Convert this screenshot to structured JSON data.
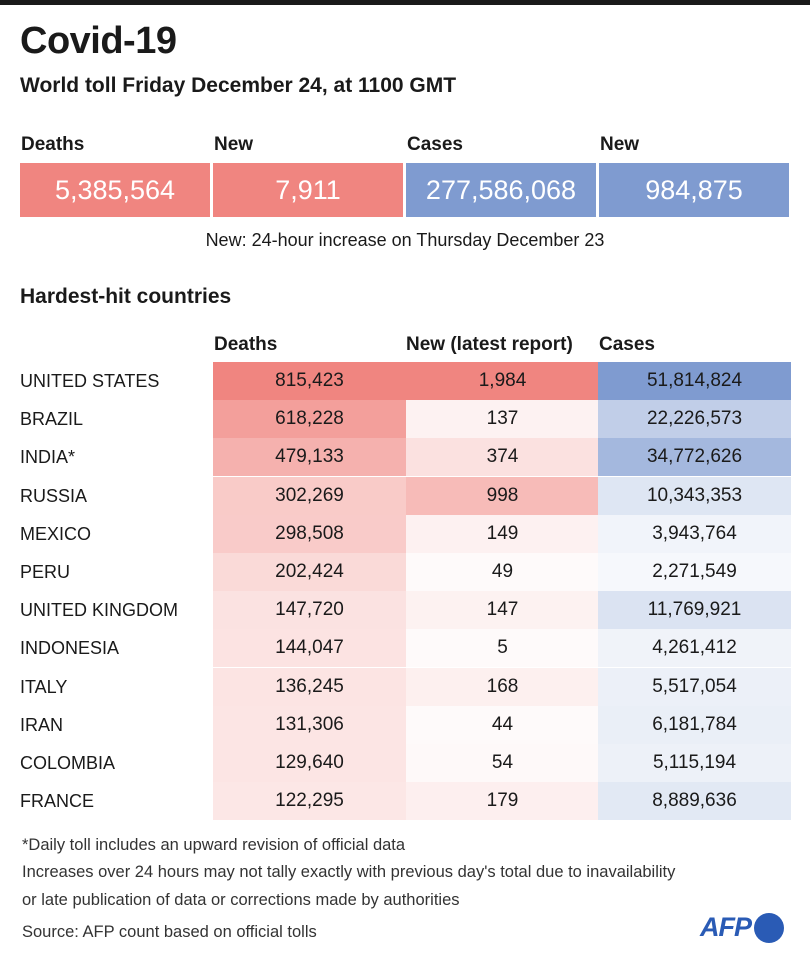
{
  "title": "Covid-19",
  "subtitle": "World toll Friday December 24, at 1100 GMT",
  "summary": [
    {
      "label": "Deaths",
      "value": "5,385,564",
      "color": "#f08580"
    },
    {
      "label": "New",
      "value": "7,911",
      "color": "#f08580"
    },
    {
      "label": "Cases",
      "value": "277,586,068",
      "color": "#7f9bd0"
    },
    {
      "label": "New",
      "value": "984,875",
      "color": "#7f9bd0"
    }
  ],
  "summary_note": "New: 24-hour increase on Thursday December 23",
  "section_title": "Hardest-hit countries",
  "columns": [
    "Deaths",
    "New (latest report)",
    "Cases"
  ],
  "colors": {
    "red": "#f08580",
    "blue": "#7f9bd0"
  },
  "chart_data": {
    "type": "table",
    "title": "Hardest-hit countries",
    "columns": [
      "Deaths",
      "New (latest report)",
      "Cases"
    ],
    "rows": [
      {
        "country": "UNITED STATES",
        "deaths": "815,423",
        "new": "1,984",
        "cases": "51,814,824"
      },
      {
        "country": "BRAZIL",
        "deaths": "618,228",
        "new": "137",
        "cases": "22,226,573"
      },
      {
        "country": "INDIA*",
        "deaths": "479,133",
        "new": "374",
        "cases": "34,772,626"
      },
      {
        "country": "RUSSIA",
        "deaths": "302,269",
        "new": "998",
        "cases": "10,343,353"
      },
      {
        "country": "MEXICO",
        "deaths": "298,508",
        "new": "149",
        "cases": "3,943,764"
      },
      {
        "country": "PERU",
        "deaths": "202,424",
        "new": "49",
        "cases": "2,271,549"
      },
      {
        "country": "UNITED KINGDOM",
        "deaths": "147,720",
        "new": "147",
        "cases": "11,769,921"
      },
      {
        "country": "INDONESIA",
        "deaths": "144,047",
        "new": "5",
        "cases": "4,261,412"
      },
      {
        "country": "ITALY",
        "deaths": "136,245",
        "new": "168",
        "cases": "5,517,054"
      },
      {
        "country": "IRAN",
        "deaths": "131,306",
        "new": "44",
        "cases": "6,181,784"
      },
      {
        "country": "COLOMBIA",
        "deaths": "129,640",
        "new": "54",
        "cases": "5,115,194"
      },
      {
        "country": "FRANCE",
        "deaths": "122,295",
        "new": "179",
        "cases": "8,889,636"
      }
    ]
  },
  "footnotes": [
    "*Daily toll includes an upward revision of official data",
    "Increases over 24 hours may not tally exactly with previous day's total due to inavailability",
    "or late publication of data or corrections made by authorities",
    "Source: AFP count based on official tolls"
  ],
  "logo": "AFP"
}
